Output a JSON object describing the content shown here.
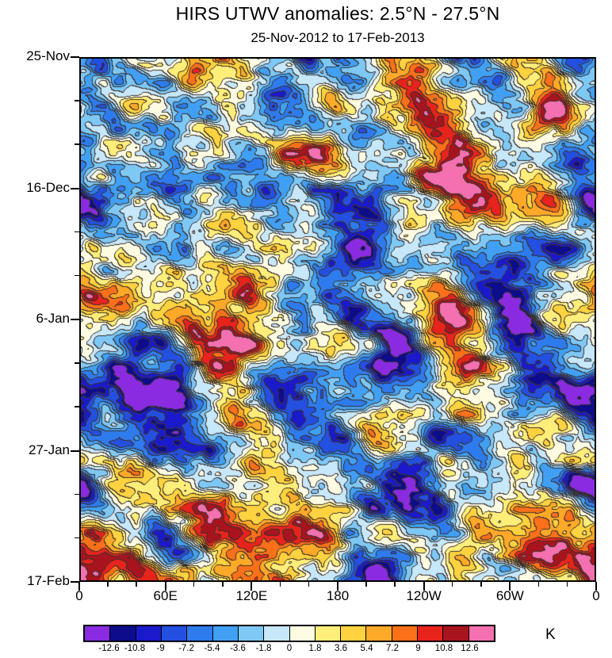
{
  "title": "HIRS UTWV anomalies: 2.5°N - 27.5°N",
  "subtitle": "25-Nov-2012 to 17-Feb-2013",
  "chart_data": {
    "type": "heatmap",
    "variant": "filled-contour-hovmoller-diagram",
    "x_axis": "longitude",
    "y_axis": "time (downward)",
    "xlabel_ticks": [
      "0",
      "60E",
      "120E",
      "180",
      "120W",
      "60W",
      "0"
    ],
    "ylabel_ticks": [
      "25-Nov",
      "16-Dec",
      "6-Jan",
      "27-Jan",
      "17-Feb"
    ],
    "levels": [
      -12.6,
      -10.8,
      -9,
      -7.2,
      -5.4,
      -3.6,
      -1.8,
      0,
      1.8,
      3.6,
      5.4,
      7.2,
      9,
      10.8,
      12.6
    ],
    "palette": [
      "#8A2BE2",
      "#0D0D8C",
      "#1A1ACC",
      "#2350E0",
      "#2E7BEE",
      "#41A0F4",
      "#7EC8F6",
      "#C7E7FA",
      "#FEFBE3",
      "#FFEE7A",
      "#FFD23F",
      "#FFA928",
      "#FB7019",
      "#E8231C",
      "#A8141E",
      "#F470B0"
    ],
    "contour_line_color": "#3C322D",
    "contour_lines": true,
    "unit": "K",
    "value_range_K": [
      -12.6,
      12.6
    ],
    "grid": false,
    "legend_position": "bottom-colorbar"
  },
  "colorbar": {
    "labels": [
      "-12.6",
      "-10.8",
      "-9",
      "-7.2",
      "-5.4",
      "-3.6",
      "-1.8",
      "0",
      "1.8",
      "3.6",
      "5.4",
      "7.2",
      "9",
      "10.8",
      "12.6"
    ],
    "unit": "K"
  }
}
